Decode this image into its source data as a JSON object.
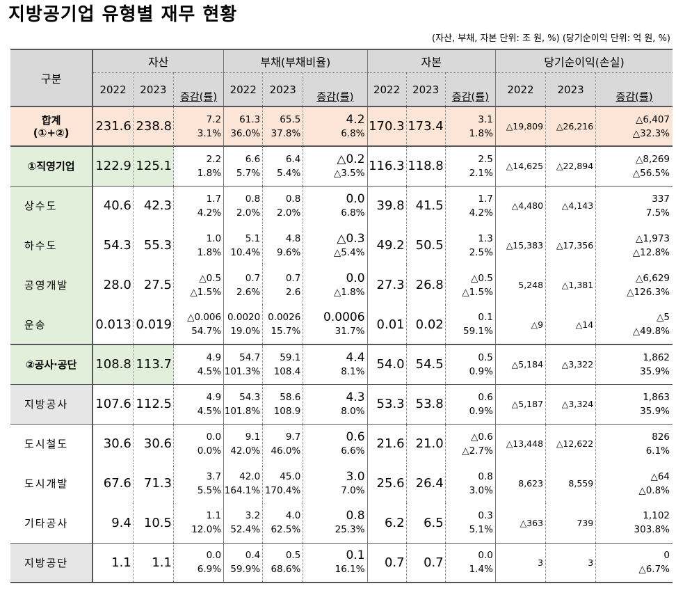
{
  "title": "지방공기업 유형별 재무 현황",
  "unit_note": "(자산, 부채, 자본 단위: 조 원, %) (당기순이익 단위: 억 원, %)",
  "header": {
    "gubun": "구분",
    "groups": [
      "자산",
      "부채(부채비율)",
      "자본",
      "당기순이익(손실)"
    ],
    "y2022": "2022",
    "y2023": "2023",
    "rate": "증감(률)"
  },
  "rows": [
    {
      "label": "합계\n(①+②)",
      "a22": "231.6",
      "a23": "238.8",
      "ad": "7.2",
      "ar": "3.1%",
      "l22": "61.3",
      "l22r": "36.0%",
      "l23": "65.5",
      "l23r": "37.8%",
      "ld": "4.2",
      "lr": "6.8%",
      "c22": "170.3",
      "c23": "173.4",
      "cd": "3.1",
      "cr": "1.8%",
      "n22": "△19,809",
      "n23": "△26,216",
      "nd": "△6,407",
      "nr": "△32.3%"
    },
    {
      "label": "①직영기업",
      "a22": "122.9",
      "a23": "125.1",
      "ad": "2.2",
      "ar": "1.8%",
      "l22": "6.6",
      "l22r": "5.7%",
      "l23": "6.4",
      "l23r": "5.4%",
      "ld": "△0.2",
      "lr": "△3.5%",
      "c22": "116.3",
      "c23": "118.8",
      "cd": "2.5",
      "cr": "2.1%",
      "n22": "△14,625",
      "n23": "△22,894",
      "nd": "△8,269",
      "nr": "△56.5%"
    },
    {
      "label": "상수도",
      "a22": "40.6",
      "a23": "42.3",
      "ad": "1.7",
      "ar": "4.2%",
      "l22": "0.8",
      "l22r": "2.0%",
      "l23": "0.8",
      "l23r": "2.0%",
      "ld": "0.0",
      "lr": "6.8%",
      "c22": "39.8",
      "c23": "41.5",
      "cd": "1.7",
      "cr": "4.2%",
      "n22": "△4,480",
      "n23": "△4,143",
      "nd": "337",
      "nr": "7.5%"
    },
    {
      "label": "하수도",
      "a22": "54.3",
      "a23": "55.3",
      "ad": "1.0",
      "ar": "1.8%",
      "l22": "5.1",
      "l22r": "10.4%",
      "l23": "4.8",
      "l23r": "9.6%",
      "ld": "△0.3",
      "lr": "△5.4%",
      "c22": "49.2",
      "c23": "50.5",
      "cd": "1.3",
      "cr": "2.5%",
      "n22": "△15,383",
      "n23": "△17,356",
      "nd": "△1,973",
      "nr": "△12.8%"
    },
    {
      "label": "공영개발",
      "a22": "28.0",
      "a23": "27.5",
      "ad": "△0.5",
      "ar": "△1.5%",
      "l22": "0.7",
      "l22r": "2.6%",
      "l23": "0.7",
      "l23r": "2.6",
      "ld": "0.0",
      "lr": "△1.8%",
      "c22": "27.3",
      "c23": "26.8",
      "cd": "△0.5",
      "cr": "△1.5%",
      "n22": "5,248",
      "n23": "△1,381",
      "nd": "△6,629",
      "nr": "△126.3%"
    },
    {
      "label": "운송",
      "a22": "0.013",
      "a23": "0.019",
      "ad": "△0.006",
      "ar": "54.7%",
      "l22": "0.0020",
      "l22r": "19.0%",
      "l23": "0.0026",
      "l23r": "15.7%",
      "ld": "0.0006",
      "lr": "31.7%",
      "c22": "0.01",
      "c23": "0.02",
      "cd": "0.1",
      "cr": "59.1%",
      "n22": "△9",
      "n23": "△14",
      "nd": "△5",
      "nr": "△49.8%"
    },
    {
      "label": "②공사·공단",
      "a22": "108.8",
      "a23": "113.7",
      "ad": "4.9",
      "ar": "4.5%",
      "l22": "54.7",
      "l22r": "101.3%",
      "l23": "59.1",
      "l23r": "108.4",
      "ld": "4.4",
      "lr": "8.1%",
      "c22": "54.0",
      "c23": "54.5",
      "cd": "0.5",
      "cr": "0.9%",
      "n22": "△5,184",
      "n23": "△3,322",
      "nd": "1,862",
      "nr": "35.9%"
    },
    {
      "label": "지방공사",
      "a22": "107.6",
      "a23": "112.5",
      "ad": "4.9",
      "ar": "4.5%",
      "l22": "54.3",
      "l22r": "101.8%",
      "l23": "58.6",
      "l23r": "108.9",
      "ld": "4.3",
      "lr": "8.0%",
      "c22": "53.3",
      "c23": "53.8",
      "cd": "0.6",
      "cr": "0.9%",
      "n22": "△5,187",
      "n23": "△3,324",
      "nd": "1,863",
      "nr": "35.9%"
    },
    {
      "label": "도시철도",
      "a22": "30.6",
      "a23": "30.6",
      "ad": "0.0",
      "ar": "0.0%",
      "l22": "9.1",
      "l22r": "42.0%",
      "l23": "9.7",
      "l23r": "46.0%",
      "ld": "0.6",
      "lr": "6.6%",
      "c22": "21.6",
      "c23": "21.0",
      "cd": "△0.6",
      "cr": "△2.7%",
      "n22": "△13,448",
      "n23": "△12,622",
      "nd": "826",
      "nr": "6.1%"
    },
    {
      "label": "도시개발",
      "a22": "67.6",
      "a23": "71.3",
      "ad": "3.7",
      "ar": "5.5%",
      "l22": "42.0",
      "l22r": "164.1%",
      "l23": "45.0",
      "l23r": "170.4%",
      "ld": "3.0",
      "lr": "7.0%",
      "c22": "25.6",
      "c23": "26.4",
      "cd": "0.8",
      "cr": "3.0%",
      "n22": "8,623",
      "n23": "8,559",
      "nd": "△64",
      "nr": "△0.8%"
    },
    {
      "label": "기타공사",
      "a22": "9.4",
      "a23": "10.5",
      "ad": "1.1",
      "ar": "12.0%",
      "l22": "3.2",
      "l22r": "52.4%",
      "l23": "4.0",
      "l23r": "62.5%",
      "ld": "0.8",
      "lr": "25.3%",
      "c22": "6.2",
      "c23": "6.5",
      "cd": "0.3",
      "cr": "5.1%",
      "n22": "△363",
      "n23": "739",
      "nd": "1,102",
      "nr": "303.8%"
    },
    {
      "label": "지방공단",
      "a22": "1.1",
      "a23": "1.1",
      "ad": "0.0",
      "ar": "6.9%",
      "l22": "0.4",
      "l22r": "59.9%",
      "l23": "0.5",
      "l23r": "68.6%",
      "ld": "0.1",
      "lr": "16.1%",
      "c22": "0.7",
      "c23": "0.7",
      "cd": "0.0",
      "cr": "1.4%",
      "n22": "3",
      "n23": "3",
      "nd": "0",
      "nr": "△6.7%"
    }
  ]
}
